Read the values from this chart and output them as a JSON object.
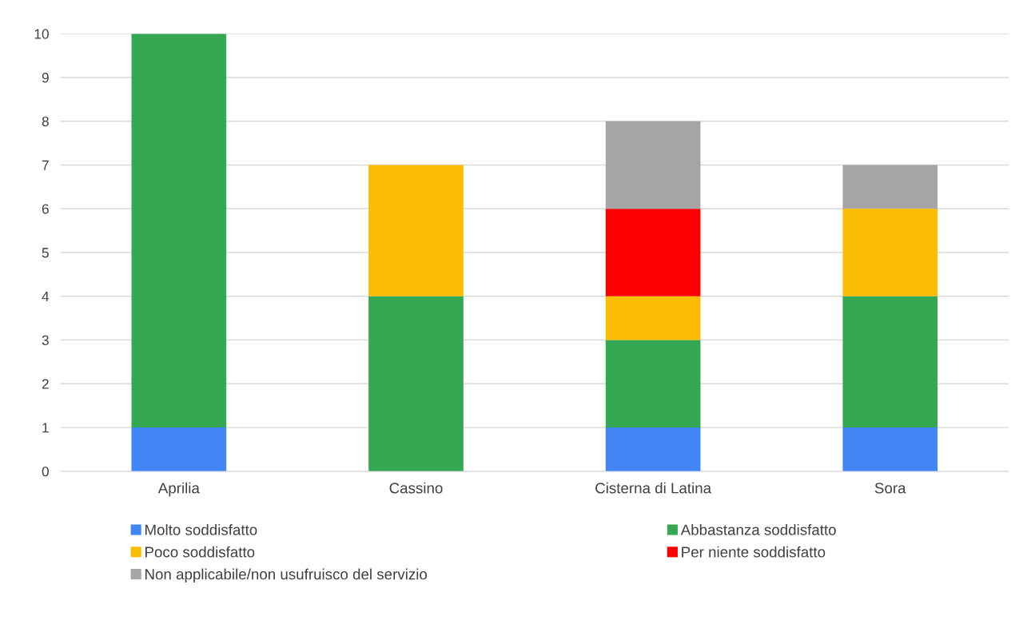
{
  "chart_data": {
    "type": "bar",
    "stacked": true,
    "categories": [
      "Aprilia",
      "Cassino",
      "Cisterna di Latina",
      "Sora"
    ],
    "series": [
      {
        "name": "Molto soddisfatto",
        "color": "#4285f4",
        "values": [
          1,
          0,
          1,
          1
        ]
      },
      {
        "name": "Abbastanza soddisfatto",
        "color": "#34a853",
        "values": [
          9,
          4,
          2,
          3
        ]
      },
      {
        "name": "Poco soddisfatto",
        "color": "#fbbc04",
        "values": [
          0,
          3,
          1,
          2
        ]
      },
      {
        "name": "Per niente soddisfatto",
        "color": "#ff0000",
        "values": [
          0,
          0,
          2,
          0
        ]
      },
      {
        "name": "Non applicabile/non usufruisco del servizio",
        "color": "#a5a5a5",
        "values": [
          0,
          0,
          2,
          1
        ]
      }
    ],
    "ylim": [
      0,
      10
    ],
    "yticks": [
      0,
      1,
      2,
      3,
      4,
      5,
      6,
      7,
      8,
      9,
      10
    ],
    "grid": "y",
    "legend": "bottom"
  }
}
